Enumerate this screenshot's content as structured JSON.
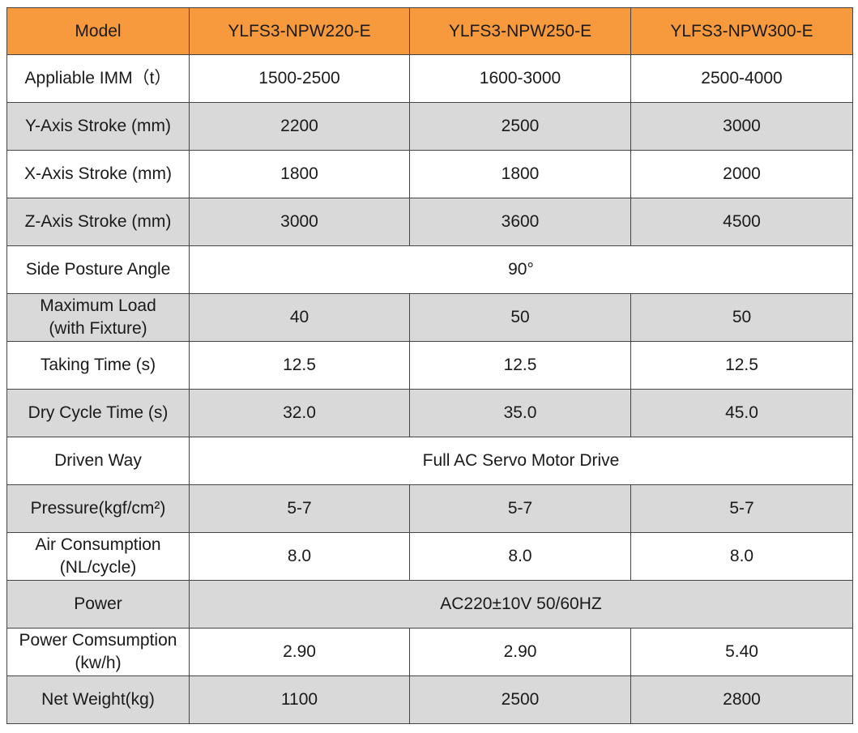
{
  "table": {
    "header": [
      "Model",
      "YLFS3-NPW220-E",
      "YLFS3-NPW250-E",
      "YLFS3-NPW300-E"
    ],
    "rows": [
      {
        "label": "Appliable IMM（t）",
        "values": [
          "1500-2500",
          "1600-3000",
          "2500-4000"
        ],
        "shaded": false
      },
      {
        "label": "Y-Axis Stroke (mm)",
        "values": [
          "2200",
          "2500",
          "3000"
        ],
        "shaded": true
      },
      {
        "label": "X-Axis Stroke (mm)",
        "values": [
          "1800",
          "1800",
          "2000"
        ],
        "shaded": false
      },
      {
        "label": "Z-Axis Stroke (mm)",
        "values": [
          "3000",
          "3600",
          "4500"
        ],
        "shaded": true
      },
      {
        "label": "Side Posture Angle",
        "values": [
          "90°"
        ],
        "shaded": false
      },
      {
        "label": "Maximum Load\n(with Fixture)",
        "values": [
          "40",
          "50",
          "50"
        ],
        "shaded": true
      },
      {
        "label": "Taking Time (s)",
        "values": [
          "12.5",
          "12.5",
          "12.5"
        ],
        "shaded": false
      },
      {
        "label": "Dry Cycle Time (s)",
        "values": [
          "32.0",
          "35.0",
          "45.0"
        ],
        "shaded": true
      },
      {
        "label": "Driven Way",
        "values": [
          "Full AC Servo Motor Drive"
        ],
        "shaded": false
      },
      {
        "label": "Pressure(kgf/cm²)",
        "values": [
          "5-7",
          "5-7",
          "5-7"
        ],
        "shaded": true
      },
      {
        "label": "Air Consumption\n(NL/cycle)",
        "values": [
          "8.0",
          "8.0",
          "8.0"
        ],
        "shaded": false
      },
      {
        "label": "Power",
        "values": [
          "AC220±10V 50/60HZ"
        ],
        "shaded": true
      },
      {
        "label": "Power Comsumption\n(kw/h)",
        "values": [
          "2.90",
          "2.90",
          "5.40"
        ],
        "shaded": false
      },
      {
        "label": "Net Weight(kg)",
        "values": [
          "1100",
          "2500",
          "2800"
        ],
        "shaded": true
      }
    ]
  },
  "colors": {
    "header_bg": "#f79a3e",
    "shaded_bg": "#d9d9d9",
    "border": "#444444"
  }
}
